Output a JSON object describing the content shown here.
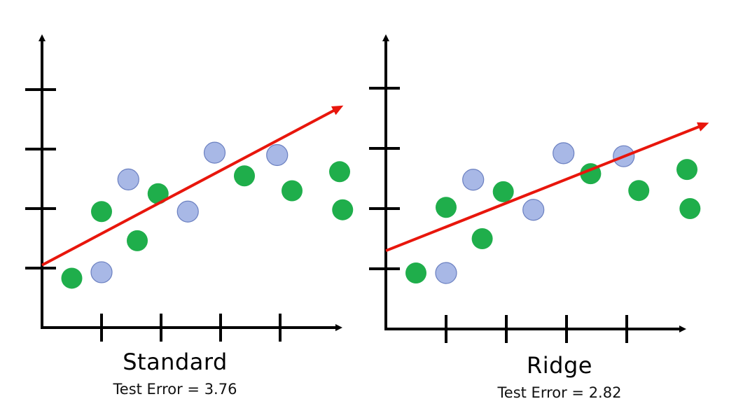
{
  "colors": {
    "axis": "#000000",
    "fit_line": "#e8160c",
    "green_points": "#1fae4b",
    "blue_points": "#a8b8e6",
    "blue_stroke": "#6a7fc0"
  },
  "chart_data": [
    {
      "type": "scatter",
      "title": "Standard",
      "subtitle": "Test Error = 3.76",
      "xlim": [
        0,
        5
      ],
      "ylim": [
        0,
        5
      ],
      "x_ticks": [
        1,
        2,
        3,
        4
      ],
      "y_ticks": [
        1,
        2,
        3,
        4
      ],
      "grid": false,
      "series": [
        {
          "color": "green",
          "points": [
            [
              0.5,
              0.83
            ],
            [
              1.0,
              1.95
            ],
            [
              1.6,
              1.46
            ],
            [
              1.95,
              2.25
            ],
            [
              3.4,
              2.55
            ],
            [
              4.2,
              2.3
            ],
            [
              5.0,
              2.62
            ],
            [
              5.05,
              1.98
            ]
          ]
        },
        {
          "color": "blue",
          "points": [
            [
              1.0,
              0.93
            ],
            [
              1.45,
              2.49
            ],
            [
              2.45,
              1.95
            ],
            [
              2.9,
              2.94
            ],
            [
              3.95,
              2.9
            ]
          ]
        }
      ],
      "line": {
        "x": [
          0,
          5
        ],
        "y": [
          1.05,
          3.7
        ]
      }
    },
    {
      "type": "scatter",
      "title": "Ridge",
      "subtitle": "Test Error = 2.82",
      "xlim": [
        0,
        5
      ],
      "ylim": [
        0,
        5
      ],
      "x_ticks": [
        1,
        2,
        3,
        4
      ],
      "y_ticks": [
        1,
        2,
        3,
        4
      ],
      "grid": false,
      "series": [
        {
          "color": "green",
          "points": [
            [
              0.5,
              0.93
            ],
            [
              1.0,
              2.02
            ],
            [
              1.6,
              1.5
            ],
            [
              1.95,
              2.28
            ],
            [
              3.4,
              2.58
            ],
            [
              4.2,
              2.3
            ],
            [
              5.0,
              2.65
            ],
            [
              5.05,
              2.0
            ]
          ]
        },
        {
          "color": "blue",
          "points": [
            [
              1.0,
              0.93
            ],
            [
              1.45,
              2.48
            ],
            [
              2.45,
              1.98
            ],
            [
              2.95,
              2.92
            ],
            [
              3.95,
              2.87
            ]
          ]
        }
      ],
      "line": {
        "x": [
          0,
          5.3
        ],
        "y": [
          1.3,
          3.4
        ]
      }
    }
  ]
}
